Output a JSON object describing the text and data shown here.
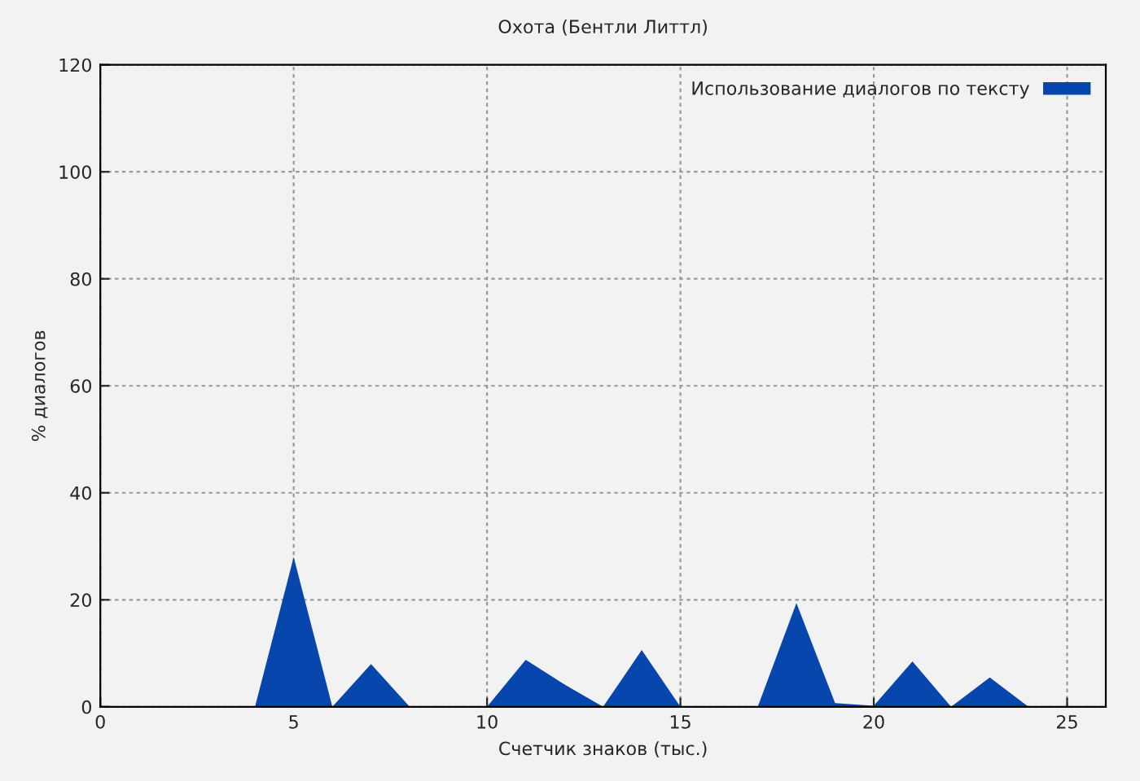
{
  "chart_data": {
    "type": "area",
    "title": "Охота (Бентли Литтл)",
    "xlabel": "Счетчик знаков (тыс.)",
    "ylabel": "% диалогов",
    "x": [
      0,
      1,
      2,
      3,
      4,
      5,
      6,
      7,
      8,
      9,
      10,
      11,
      12,
      13,
      14,
      15,
      16,
      17,
      18,
      19,
      20,
      21,
      22,
      23,
      24
    ],
    "series": [
      {
        "name": "Использование диалогов по тексту",
        "color": "#0646ad",
        "values": [
          0,
          0,
          0,
          0,
          0,
          28,
          0,
          8,
          0,
          0,
          0,
          8.8,
          4.2,
          0,
          10.6,
          0,
          0,
          0,
          19.4,
          0.7,
          0.2,
          8.5,
          0,
          5.5,
          0
        ]
      }
    ],
    "xlim": [
      0,
      26
    ],
    "xticks": [
      0,
      5,
      10,
      15,
      20,
      25
    ],
    "ylim": [
      0,
      120
    ],
    "yticks": [
      0,
      20,
      40,
      60,
      80,
      100,
      120
    ],
    "grid": true,
    "legend": "top right"
  }
}
